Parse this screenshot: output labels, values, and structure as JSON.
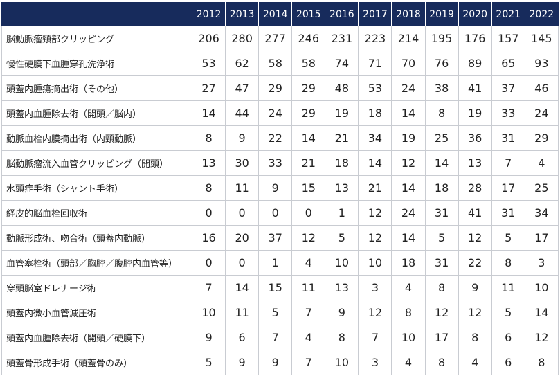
{
  "table": {
    "header": {
      "corner": "",
      "years": [
        "2012",
        "2013",
        "2014",
        "2015",
        "2016",
        "2017",
        "2018",
        "2019",
        "2020",
        "2021",
        "2022"
      ]
    },
    "rows": [
      {
        "label": "脳動脈瘤頸部クリッピング",
        "values": [
          "206",
          "280",
          "277",
          "246",
          "231",
          "223",
          "214",
          "195",
          "176",
          "157",
          "145"
        ]
      },
      {
        "label": "慢性硬膜下血腫穿孔洗浄術",
        "values": [
          "53",
          "62",
          "58",
          "58",
          "74",
          "71",
          "70",
          "76",
          "89",
          "65",
          "93"
        ]
      },
      {
        "label": "頭蓋内腫瘍摘出術（その他）",
        "values": [
          "27",
          "47",
          "29",
          "29",
          "48",
          "53",
          "24",
          "38",
          "41",
          "37",
          "46"
        ]
      },
      {
        "label": "頭蓋内血腫除去術（開頭／脳内）",
        "values": [
          "14",
          "44",
          "24",
          "29",
          "19",
          "18",
          "14",
          "8",
          "19",
          "33",
          "24"
        ]
      },
      {
        "label": "動脈血栓内膜摘出術（内頸動脈）",
        "values": [
          "8",
          "9",
          "22",
          "14",
          "21",
          "34",
          "19",
          "25",
          "36",
          "31",
          "29"
        ]
      },
      {
        "label": "脳動脈瘤流入血管クリッピング（開頭）",
        "values": [
          "13",
          "30",
          "33",
          "21",
          "18",
          "14",
          "12",
          "14",
          "13",
          "7",
          "4"
        ]
      },
      {
        "label": "水頭症手術（シャント手術）",
        "values": [
          "8",
          "11",
          "9",
          "15",
          "13",
          "21",
          "14",
          "18",
          "28",
          "17",
          "25"
        ]
      },
      {
        "label": "経皮的脳血栓回収術",
        "values": [
          "0",
          "0",
          "0",
          "0",
          "1",
          "12",
          "24",
          "31",
          "41",
          "31",
          "34"
        ]
      },
      {
        "label": "動脈形成術、吻合術（頭蓋内動脈）",
        "values": [
          "16",
          "20",
          "37",
          "12",
          "5",
          "12",
          "14",
          "5",
          "12",
          "5",
          "17"
        ]
      },
      {
        "label": "血管塞栓術（頭部／胸腔／腹腔内血管等）",
        "values": [
          "0",
          "0",
          "1",
          "4",
          "10",
          "10",
          "18",
          "31",
          "22",
          "8",
          "3"
        ]
      },
      {
        "label": "穿頭脳室ドレナージ術",
        "values": [
          "7",
          "14",
          "15",
          "11",
          "13",
          "3",
          "4",
          "8",
          "9",
          "11",
          "10"
        ]
      },
      {
        "label": "頭蓋内微小血管減圧術",
        "values": [
          "10",
          "11",
          "5",
          "7",
          "9",
          "12",
          "8",
          "12",
          "12",
          "5",
          "14"
        ]
      },
      {
        "label": "頭蓋内血腫除去術（開頭／硬膜下）",
        "values": [
          "9",
          "6",
          "7",
          "4",
          "8",
          "7",
          "10",
          "17",
          "8",
          "6",
          "12"
        ]
      },
      {
        "label": "頭蓋骨形成手術（頭蓋骨のみ）",
        "values": [
          "5",
          "9",
          "9",
          "7",
          "10",
          "3",
          "4",
          "8",
          "4",
          "6",
          "8"
        ]
      }
    ]
  }
}
